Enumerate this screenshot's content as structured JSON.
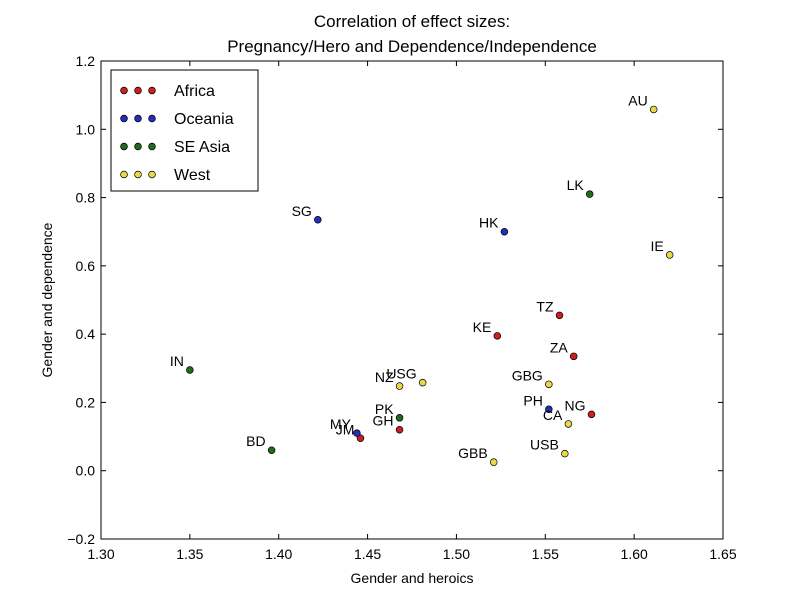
{
  "chart_data": {
    "type": "scatter",
    "title_lines": [
      "Correlation of effect sizes:",
      "Pregnancy/Hero and Dependence/Independence"
    ],
    "xlabel": "Gender and heroics",
    "ylabel": "Gender and dependence",
    "xlim": [
      1.3,
      1.65
    ],
    "ylim": [
      -0.2,
      1.2
    ],
    "xticks": [
      1.3,
      1.35,
      1.4,
      1.45,
      1.5,
      1.55,
      1.6,
      1.65
    ],
    "yticks": [
      -0.2,
      0.0,
      0.2,
      0.4,
      0.6,
      0.8,
      1.0,
      1.2
    ],
    "xtick_labels": [
      "1.30",
      "1.35",
      "1.40",
      "1.45",
      "1.50",
      "1.55",
      "1.60",
      "1.65"
    ],
    "ytick_labels": [
      "−0.2",
      "0.0",
      "0.2",
      "0.4",
      "0.6",
      "0.8",
      "1.0",
      "1.2"
    ],
    "grid": false,
    "legend_position": "top-left",
    "series": [
      {
        "name": "Africa",
        "color": "#cc1f1f",
        "points": [
          {
            "label": "TZ",
            "x": 1.558,
            "y": 0.455
          },
          {
            "label": "KE",
            "x": 1.523,
            "y": 0.395
          },
          {
            "label": "ZA",
            "x": 1.566,
            "y": 0.335
          },
          {
            "label": "NG",
            "x": 1.576,
            "y": 0.165
          },
          {
            "label": "GH",
            "x": 1.468,
            "y": 0.12
          },
          {
            "label": "JM",
            "x": 1.446,
            "y": 0.095
          }
        ]
      },
      {
        "name": "Oceania",
        "color": "#1f2fbf",
        "points": [
          {
            "label": "SG",
            "x": 1.422,
            "y": 0.735
          },
          {
            "label": "HK",
            "x": 1.527,
            "y": 0.7
          },
          {
            "label": "PH",
            "x": 1.552,
            "y": 0.18
          },
          {
            "label": "MY",
            "x": 1.444,
            "y": 0.11
          }
        ]
      },
      {
        "name": "SE Asia",
        "color": "#1f6b1f",
        "points": [
          {
            "label": "LK",
            "x": 1.575,
            "y": 0.81
          },
          {
            "label": "IN",
            "x": 1.35,
            "y": 0.295
          },
          {
            "label": "PK",
            "x": 1.468,
            "y": 0.155
          },
          {
            "label": "BD",
            "x": 1.396,
            "y": 0.06
          }
        ]
      },
      {
        "name": "West",
        "color": "#e8d84a",
        "points": [
          {
            "label": "AU",
            "x": 1.611,
            "y": 1.058
          },
          {
            "label": "IE",
            "x": 1.62,
            "y": 0.632
          },
          {
            "label": "USG",
            "x": 1.481,
            "y": 0.258
          },
          {
            "label": "GBG",
            "x": 1.552,
            "y": 0.253
          },
          {
            "label": "NZ",
            "x": 1.468,
            "y": 0.248
          },
          {
            "label": "CA",
            "x": 1.563,
            "y": 0.137
          },
          {
            "label": "USB",
            "x": 1.561,
            "y": 0.05
          },
          {
            "label": "GBB",
            "x": 1.521,
            "y": 0.025
          }
        ]
      }
    ]
  }
}
